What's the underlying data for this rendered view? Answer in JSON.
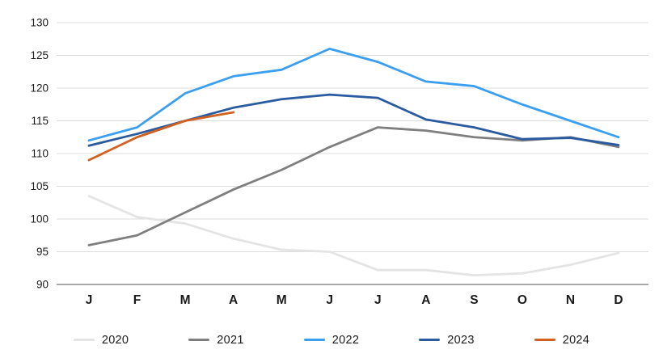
{
  "chart_data": {
    "type": "line",
    "title": "",
    "xlabel": "",
    "ylabel": "",
    "categories": [
      "J",
      "F",
      "M",
      "A",
      "M",
      "J",
      "J",
      "A",
      "S",
      "O",
      "N",
      "D"
    ],
    "series": [
      {
        "name": "2020",
        "color": "#e4e4e4",
        "values": [
          103.5,
          100.3,
          99.3,
          97.0,
          95.3,
          95.0,
          92.2,
          92.2,
          91.4,
          91.7,
          93.0,
          94.8
        ]
      },
      {
        "name": "2021",
        "color": "#7f7f7f",
        "values": [
          96.0,
          97.5,
          101.0,
          104.5,
          107.5,
          111.0,
          114.0,
          113.5,
          112.5,
          112.0,
          112.5,
          111.0
        ]
      },
      {
        "name": "2022",
        "color": "#3b9ff0",
        "values": [
          112.0,
          114.0,
          119.2,
          121.8,
          122.8,
          126.0,
          124.0,
          121.0,
          120.3,
          117.5,
          115.0,
          112.5
        ]
      },
      {
        "name": "2023",
        "color": "#2a5a9f",
        "values": [
          111.2,
          113.0,
          115.0,
          117.0,
          118.3,
          119.0,
          118.5,
          115.2,
          114.0,
          112.2,
          112.4,
          111.3
        ]
      },
      {
        "name": "2024",
        "color": "#d2601e",
        "values": [
          109.0,
          112.5,
          115.0,
          116.3
        ]
      }
    ],
    "ylim": [
      90,
      130
    ],
    "ytick_step": 5,
    "yticks": [
      "90",
      "95",
      "100",
      "105",
      "110",
      "115",
      "120",
      "125",
      "130"
    ],
    "grid": "horizontal",
    "gridline_color": "#dcdcdc",
    "axis_line_color": "#8c8c8c",
    "tick_label_color": "#1a1a1a",
    "legend_position": "bottom"
  }
}
